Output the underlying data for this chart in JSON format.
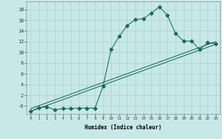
{
  "xlabel": "Humidex (Indice chaleur)",
  "ylabel": "",
  "bg_color": "#c8e8e8",
  "line_color": "#1a6b5a",
  "grid_color": "#aacece",
  "xlim": [
    -0.5,
    23.5
  ],
  "ylim": [
    -1.5,
    19.5
  ],
  "xticks": [
    0,
    1,
    2,
    3,
    4,
    5,
    6,
    7,
    8,
    9,
    10,
    11,
    12,
    13,
    14,
    15,
    16,
    17,
    18,
    19,
    20,
    21,
    22,
    23
  ],
  "yticks": [
    0,
    2,
    4,
    6,
    8,
    10,
    12,
    14,
    16,
    18
  ],
  "ytick_labels": [
    "-0",
    "2",
    "4",
    "6",
    "8",
    "10",
    "12",
    "14",
    "16",
    "18"
  ],
  "line1_x": [
    0,
    1,
    2,
    3,
    4,
    5,
    6,
    7,
    8,
    9,
    10,
    11,
    12,
    13,
    14,
    15,
    16,
    17,
    18,
    19,
    20,
    21,
    22,
    23
  ],
  "line1_y": [
    -1,
    -0.3,
    -0.2,
    -0.7,
    -0.5,
    -0.5,
    -0.4,
    -0.4,
    -0.4,
    3.7,
    10.5,
    13,
    15,
    16.1,
    16.3,
    17.3,
    18.5,
    16.9,
    13.5,
    12.1,
    12.1,
    10.5,
    11.8,
    11.6
  ],
  "line2_x": [
    0,
    23
  ],
  "line2_y": [
    -1.0,
    11.5
  ],
  "line3_x": [
    0,
    23
  ],
  "line3_y": [
    -0.5,
    12.0
  ],
  "marker": "D",
  "markersize": 2.5,
  "linewidth": 0.8
}
